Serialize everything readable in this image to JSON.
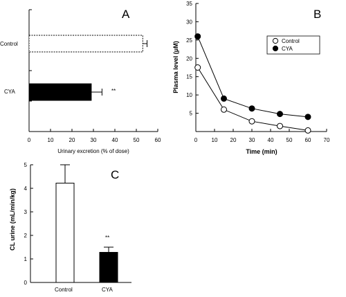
{
  "chart_data": [
    {
      "type": "bar",
      "orientation": "horizontal",
      "panel_label": "A",
      "categories": [
        "Control",
        "CYA"
      ],
      "values": [
        53,
        29
      ],
      "errors": [
        2,
        5
      ],
      "significance": [
        "",
        "**"
      ],
      "fills": [
        "#ffffff",
        "#000000"
      ],
      "xlabel": "Urinary excretion (% of dose)",
      "ylabel": "",
      "xlim": [
        0,
        60
      ],
      "xticks": [
        "0",
        "10",
        "20",
        "30",
        "40",
        "50",
        "60"
      ]
    },
    {
      "type": "line",
      "panel_label": "B",
      "xlabel": "Time (min)",
      "ylabel": "Plasma level (μM)",
      "xlim": [
        0,
        70
      ],
      "ylim": [
        0,
        35
      ],
      "xticks": [
        "0",
        "10",
        "20",
        "30",
        "40",
        "50",
        "60",
        "70"
      ],
      "yticks": [
        "5",
        "10",
        "15",
        "20",
        "25",
        "30",
        "35"
      ],
      "legend_position": "top-right",
      "series": [
        {
          "name": "Control",
          "marker": "open",
          "x": [
            1,
            15,
            30,
            45,
            60
          ],
          "y": [
            17.5,
            6,
            2.8,
            1.5,
            0.3
          ]
        },
        {
          "name": "CYA",
          "marker": "filled",
          "x": [
            1,
            15,
            30,
            45,
            60
          ],
          "y": [
            26,
            9,
            6.3,
            4.8,
            4
          ]
        }
      ]
    },
    {
      "type": "bar",
      "orientation": "vertical",
      "panel_label": "C",
      "categories": [
        "Control",
        "CYA"
      ],
      "values": [
        4.22,
        1.28
      ],
      "errors": [
        0.78,
        0.22
      ],
      "significance": [
        "",
        "**"
      ],
      "fills": [
        "#ffffff",
        "#000000"
      ],
      "xlabel": "",
      "ylabel": "CL urine (mL/min/kg)",
      "ylim": [
        0,
        5
      ],
      "yticks": [
        "0",
        "1",
        "2",
        "3",
        "4",
        "5"
      ]
    }
  ]
}
